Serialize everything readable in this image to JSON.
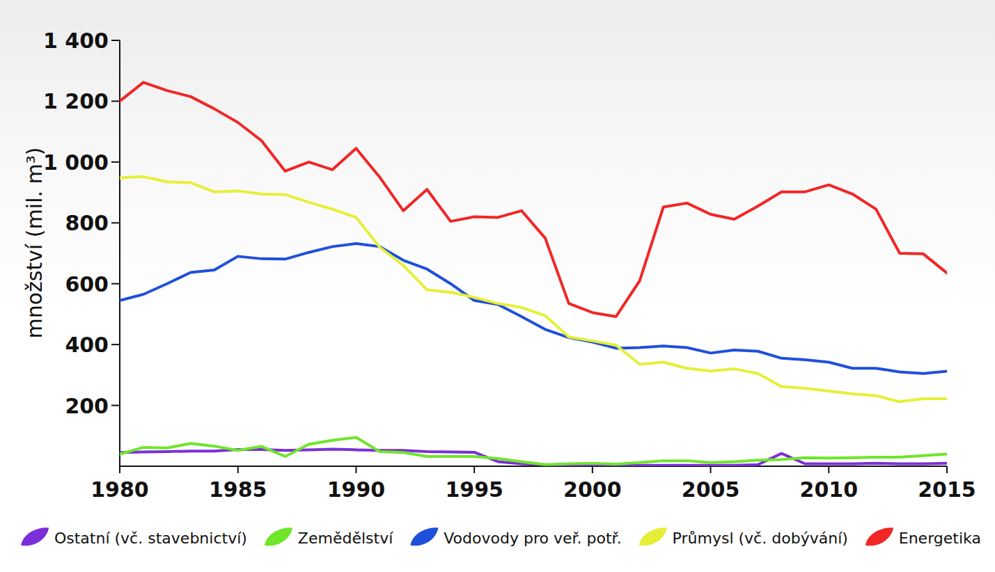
{
  "chart_data": {
    "type": "line",
    "y_label": "množství (mil. m³)",
    "x": [
      1980,
      1981,
      1982,
      1983,
      1984,
      1985,
      1986,
      1987,
      1988,
      1989,
      1990,
      1991,
      1992,
      1993,
      1994,
      1995,
      1996,
      1997,
      1998,
      1999,
      2000,
      2001,
      2002,
      2003,
      2004,
      2005,
      2006,
      2007,
      2008,
      2009,
      2010,
      2011,
      2012,
      2013,
      2014,
      2015
    ],
    "xlim": [
      1980,
      2015
    ],
    "xticks": [
      1980,
      1985,
      1990,
      1995,
      2000,
      2005,
      2010,
      2015
    ],
    "ylim": [
      0,
      1400
    ],
    "yticks": [
      200,
      400,
      600,
      800,
      {
        "value": 1000,
        "label": "1 000"
      },
      {
        "value": 1200,
        "label": "1 200"
      },
      {
        "value": 1400,
        "label": "1 400"
      }
    ],
    "grid": false,
    "legend": "bottom",
    "series": [
      {
        "name": "Ostatní (vč. stavebnictví)",
        "color": "#7b2fd8",
        "values": [
          45,
          47,
          48,
          50,
          50,
          55,
          55,
          52,
          54,
          56,
          54,
          52,
          52,
          48,
          47,
          46,
          15,
          8,
          5,
          4,
          4,
          4,
          3,
          3,
          3,
          3,
          3,
          5,
          42,
          8,
          8,
          8,
          10,
          8,
          8,
          10
        ]
      },
      {
        "name": "Zemědělství",
        "color": "#6ee62a",
        "values": [
          40,
          62,
          60,
          75,
          66,
          52,
          65,
          32,
          72,
          85,
          95,
          48,
          45,
          32,
          32,
          32,
          25,
          15,
          5,
          8,
          10,
          7,
          12,
          18,
          18,
          12,
          15,
          20,
          22,
          28,
          27,
          28,
          30,
          30,
          35,
          40
        ]
      },
      {
        "name": "Vodovody pro veř. potř.",
        "color": "#1f50d9",
        "values": [
          545,
          565,
          600,
          637,
          645,
          690,
          682,
          681,
          703,
          722,
          732,
          722,
          677,
          648,
          600,
          545,
          532,
          492,
          450,
          423,
          408,
          388,
          390,
          395,
          390,
          372,
          382,
          378,
          355,
          350,
          342,
          322,
          322,
          310,
          305,
          312
        ]
      },
      {
        "name": "Průmysl (vč. dobývání)",
        "color": "#e6ef38",
        "values": [
          948,
          952,
          935,
          932,
          902,
          905,
          895,
          893,
          868,
          845,
          818,
          720,
          660,
          580,
          572,
          555,
          535,
          522,
          495,
          425,
          412,
          398,
          335,
          342,
          322,
          313,
          320,
          305,
          262,
          256,
          247,
          238,
          232,
          212,
          222,
          222
        ]
      },
      {
        "name": "Energetika",
        "color": "#f12626",
        "values": [
          1200,
          1262,
          1235,
          1215,
          1175,
          1130,
          1070,
          970,
          1000,
          975,
          1045,
          950,
          840,
          910,
          805,
          820,
          818,
          840,
          750,
          535,
          505,
          492,
          610,
          852,
          865,
          828,
          812,
          855,
          902,
          902,
          925,
          895,
          845,
          700,
          698,
          635
        ]
      }
    ]
  }
}
